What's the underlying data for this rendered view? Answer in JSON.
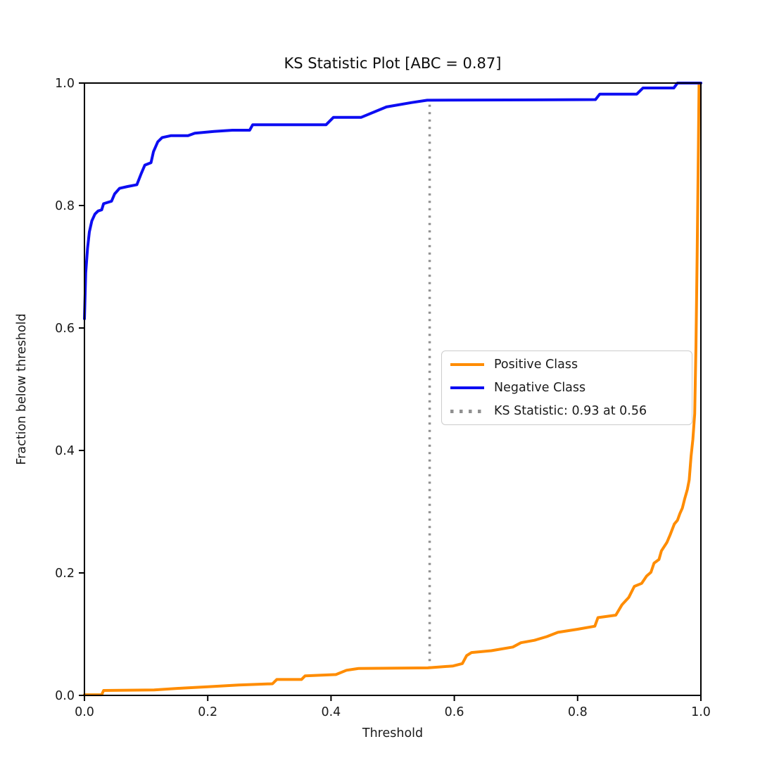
{
  "chart_data": {
    "type": "line",
    "title": "KS Statistic Plot [ABC = 0.87]",
    "xlabel": "Threshold",
    "ylabel": "Fraction below threshold",
    "xlim": [
      0.0,
      1.0
    ],
    "ylim": [
      0.0,
      1.0
    ],
    "x_ticks": [
      0.0,
      0.2,
      0.4,
      0.6,
      0.8,
      1.0
    ],
    "y_ticks": [
      0.0,
      0.2,
      0.4,
      0.6,
      0.8,
      1.0
    ],
    "grid": false,
    "abc_value": 0.87,
    "legend": {
      "position": "center right",
      "entries": [
        {
          "label": "Positive Class",
          "color": "#ff8c00",
          "style": "solid"
        },
        {
          "label": "Negative Class",
          "color": "#0d0df2",
          "style": "solid"
        },
        {
          "label": "KS Statistic: 0.93 at 0.56",
          "color": "#909090",
          "style": "dotted"
        }
      ]
    },
    "ks_line": {
      "x": 0.56,
      "y_from": 0.044,
      "y_to": 0.972,
      "ks_statistic": 0.93,
      "at_threshold": 0.56,
      "color": "#909090",
      "label": "KS Statistic: 0.93 at 0.56"
    },
    "series": [
      {
        "name": "Positive Class",
        "color": "#ff8c00",
        "points": [
          [
            0.0,
            0.001
          ],
          [
            0.028,
            0.001
          ],
          [
            0.031,
            0.008
          ],
          [
            0.113,
            0.009
          ],
          [
            0.16,
            0.012
          ],
          [
            0.2,
            0.014
          ],
          [
            0.25,
            0.017
          ],
          [
            0.305,
            0.019
          ],
          [
            0.312,
            0.026
          ],
          [
            0.352,
            0.026
          ],
          [
            0.358,
            0.032
          ],
          [
            0.408,
            0.034
          ],
          [
            0.425,
            0.041
          ],
          [
            0.445,
            0.044
          ],
          [
            0.557,
            0.045
          ],
          [
            0.598,
            0.048
          ],
          [
            0.613,
            0.052
          ],
          [
            0.62,
            0.065
          ],
          [
            0.628,
            0.07
          ],
          [
            0.66,
            0.073
          ],
          [
            0.695,
            0.079
          ],
          [
            0.708,
            0.086
          ],
          [
            0.73,
            0.09
          ],
          [
            0.75,
            0.096
          ],
          [
            0.768,
            0.103
          ],
          [
            0.8,
            0.108
          ],
          [
            0.828,
            0.113
          ],
          [
            0.833,
            0.127
          ],
          [
            0.862,
            0.131
          ],
          [
            0.872,
            0.148
          ],
          [
            0.883,
            0.16
          ],
          [
            0.892,
            0.178
          ],
          [
            0.904,
            0.183
          ],
          [
            0.912,
            0.195
          ],
          [
            0.919,
            0.201
          ],
          [
            0.924,
            0.216
          ],
          [
            0.932,
            0.222
          ],
          [
            0.936,
            0.236
          ],
          [
            0.945,
            0.25
          ],
          [
            0.95,
            0.262
          ],
          [
            0.957,
            0.28
          ],
          [
            0.962,
            0.286
          ],
          [
            0.966,
            0.297
          ],
          [
            0.97,
            0.306
          ],
          [
            0.974,
            0.322
          ],
          [
            0.978,
            0.336
          ],
          [
            0.981,
            0.352
          ],
          [
            0.984,
            0.39
          ],
          [
            0.987,
            0.418
          ],
          [
            0.99,
            0.46
          ],
          [
            0.992,
            0.57
          ],
          [
            0.994,
            0.72
          ],
          [
            0.996,
            0.9
          ],
          [
            0.997,
            1.0
          ]
        ]
      },
      {
        "name": "Negative Class",
        "color": "#0d0df2",
        "points": [
          [
            0.0,
            0.615
          ],
          [
            0.002,
            0.69
          ],
          [
            0.005,
            0.73
          ],
          [
            0.008,
            0.757
          ],
          [
            0.012,
            0.775
          ],
          [
            0.017,
            0.786
          ],
          [
            0.022,
            0.791
          ],
          [
            0.028,
            0.793
          ],
          [
            0.031,
            0.803
          ],
          [
            0.044,
            0.807
          ],
          [
            0.049,
            0.819
          ],
          [
            0.057,
            0.828
          ],
          [
            0.07,
            0.831
          ],
          [
            0.085,
            0.834
          ],
          [
            0.092,
            0.852
          ],
          [
            0.098,
            0.866
          ],
          [
            0.108,
            0.87
          ],
          [
            0.112,
            0.888
          ],
          [
            0.119,
            0.904
          ],
          [
            0.126,
            0.911
          ],
          [
            0.14,
            0.914
          ],
          [
            0.168,
            0.914
          ],
          [
            0.179,
            0.918
          ],
          [
            0.21,
            0.921
          ],
          [
            0.24,
            0.923
          ],
          [
            0.268,
            0.923
          ],
          [
            0.273,
            0.932
          ],
          [
            0.392,
            0.932
          ],
          [
            0.404,
            0.944
          ],
          [
            0.449,
            0.944
          ],
          [
            0.49,
            0.961
          ],
          [
            0.53,
            0.968
          ],
          [
            0.556,
            0.972
          ],
          [
            0.829,
            0.973
          ],
          [
            0.836,
            0.982
          ],
          [
            0.896,
            0.982
          ],
          [
            0.906,
            0.992
          ],
          [
            0.956,
            0.992
          ],
          [
            0.962,
            1.0
          ],
          [
            1.0,
            1.0
          ]
        ]
      }
    ]
  }
}
